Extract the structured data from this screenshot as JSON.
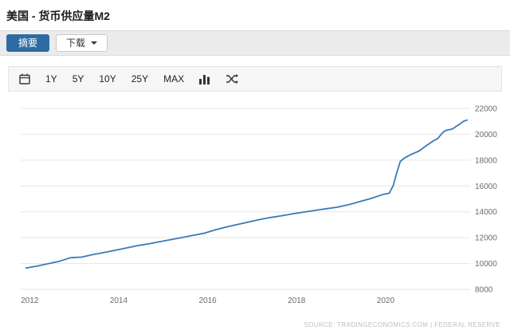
{
  "header": {
    "title": "美国 - 货币供应量M2"
  },
  "tabs": {
    "summary": "摘要",
    "download": "下载"
  },
  "toolbar": {
    "ranges": [
      "1Y",
      "5Y",
      "10Y",
      "25Y",
      "MAX"
    ],
    "icons": {
      "calendar": "calendar-icon",
      "chart_type": "bar-chart-icon",
      "compare": "shuffle-icon"
    }
  },
  "colors": {
    "accent": "#2d6ca2",
    "line": "#3a79b8",
    "grid": "#e6e6e6",
    "tick": "#6b6b6b"
  },
  "source_text": "SOURCE: TRADINGECONOMICS.COM | FEDERAL RESERVE",
  "chart_data": {
    "type": "line",
    "title": "美国 - 货币供应量M2",
    "xlabel": "",
    "ylabel": "",
    "legend_position": "none",
    "grid": "horizontal",
    "yaxis_side": "right",
    "xlim": [
      2011.87,
      2021.9
    ],
    "ylim": [
      8000,
      22000
    ],
    "xticks": [
      2012,
      2014,
      2016,
      2018,
      2020
    ],
    "yticks": [
      8000,
      10000,
      12000,
      14000,
      16000,
      18000,
      20000,
      22000
    ],
    "x": [
      2011.92,
      2012.17,
      2012.42,
      2012.67,
      2012.92,
      2013.17,
      2013.42,
      2013.67,
      2013.92,
      2014.17,
      2014.42,
      2014.67,
      2014.92,
      2015.17,
      2015.42,
      2015.67,
      2015.92,
      2016.17,
      2016.42,
      2016.67,
      2016.92,
      2017.17,
      2017.42,
      2017.67,
      2017.92,
      2018.17,
      2018.42,
      2018.67,
      2018.92,
      2019.17,
      2019.42,
      2019.67,
      2019.92,
      2020.08,
      2020.17,
      2020.25,
      2020.33,
      2020.42,
      2020.58,
      2020.75,
      2020.92,
      2021.08,
      2021.17,
      2021.25,
      2021.33,
      2021.42,
      2021.5,
      2021.58,
      2021.67,
      2021.75,
      2021.83
    ],
    "values": [
      9650,
      9800,
      9990,
      10180,
      10450,
      10500,
      10690,
      10850,
      11020,
      11200,
      11380,
      11520,
      11680,
      11850,
      12010,
      12180,
      12340,
      12600,
      12830,
      13020,
      13210,
      13400,
      13560,
      13700,
      13850,
      13980,
      14110,
      14240,
      14360,
      14550,
      14790,
      15030,
      15320,
      15440,
      16020,
      17020,
      17900,
      18160,
      18450,
      18700,
      19130,
      19500,
      19660,
      20000,
      20270,
      20350,
      20400,
      20600,
      20800,
      21000,
      21100
    ]
  }
}
